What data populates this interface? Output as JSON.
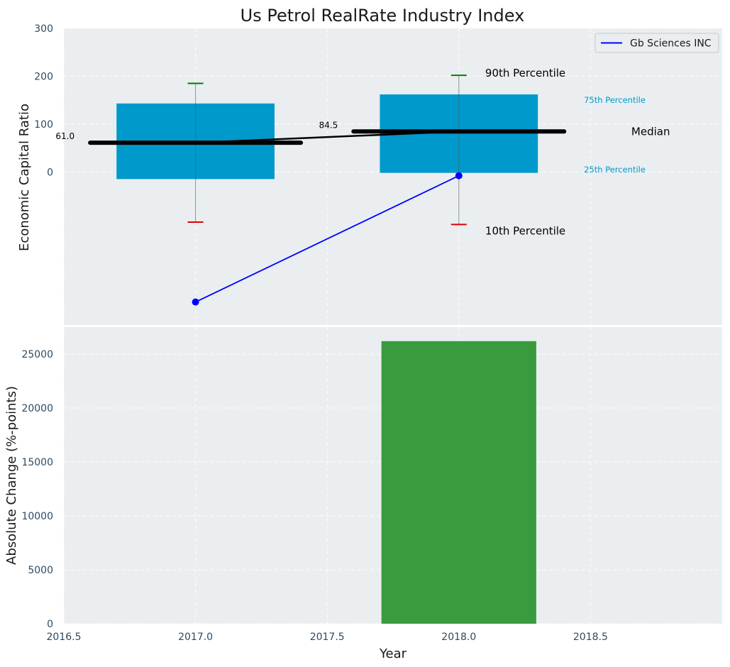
{
  "chart_data": [
    {
      "type": "box",
      "title": "Us Petrol RealRate Industry Index",
      "ylabel": "Economic Capital Ratio",
      "xlim": [
        2016.5,
        2019.0
      ],
      "ylim": [
        -320,
        300
      ],
      "yticks": [
        0,
        100,
        200,
        300
      ],
      "grid": true,
      "background": "#eaeef0",
      "box_color": "#0099cc",
      "boxes": [
        {
          "x": 2017.0,
          "p10": -105,
          "p25": -15,
          "median": 61.0,
          "p75": 143,
          "p90": 185,
          "median_label": "61.0"
        },
        {
          "x": 2018.0,
          "p10": -110,
          "p25": -2,
          "median": 84.5,
          "p75": 162,
          "p90": 202,
          "median_label": "84.5"
        }
      ],
      "median_line": {
        "x": [
          2017.0,
          2018.0
        ],
        "y": [
          61.0,
          84.5
        ],
        "color": "#000000"
      },
      "series": [
        {
          "name": "Gb Sciences INC",
          "color": "#0000ff",
          "x": [
            2017.0,
            2018.0
          ],
          "y": [
            -272,
            -8
          ]
        }
      ],
      "legend_position": "top-right",
      "annotations": {
        "p90": "90th Percentile",
        "p75": "75th Percentile",
        "median": "Median",
        "p25": "25th Percentile",
        "p10": "10th Percentile"
      },
      "whisker_colors": {
        "top": "#008000",
        "bottom": "#e00000"
      }
    },
    {
      "type": "bar",
      "ylabel": "Absolute Change (%-points)",
      "xlabel": "Year",
      "xlim": [
        2016.5,
        2019.0
      ],
      "xticks": [
        2016.5,
        2017.0,
        2017.5,
        2018.0,
        2018.5
      ],
      "xtick_labels": [
        "2016.5",
        "2017.0",
        "2017.5",
        "2018.0",
        "2018.5"
      ],
      "ylim": [
        0,
        27500
      ],
      "yticks": [
        0,
        5000,
        10000,
        15000,
        20000,
        25000
      ],
      "grid": true,
      "bars": [
        {
          "x": 2018.0,
          "value": 26200,
          "color": "#3a9b3e"
        }
      ]
    }
  ]
}
